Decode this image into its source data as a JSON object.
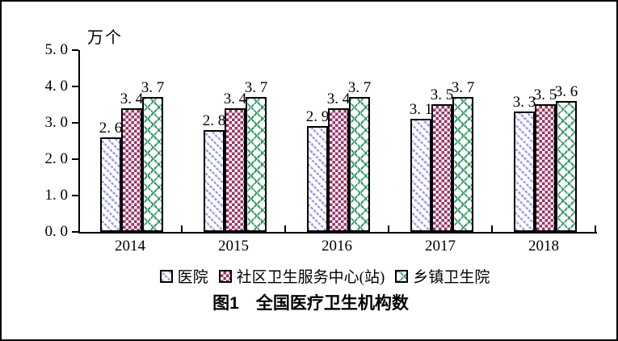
{
  "chart_data": {
    "type": "bar",
    "title": "图1　全国医疗卫生机构数",
    "unit_label": "万个",
    "categories": [
      "2014",
      "2015",
      "2016",
      "2017",
      "2018"
    ],
    "series": [
      {
        "name": "医院",
        "values": [
          2.6,
          2.8,
          2.9,
          3.1,
          3.3
        ],
        "labels": [
          "2. 6",
          "2. 8",
          "2. 9",
          "3. 1",
          "3. 3"
        ],
        "pattern": "dashed-backslash-diagonal",
        "color": "#9f9fe8"
      },
      {
        "name": "社区卫生服务中心(站)",
        "values": [
          3.4,
          3.4,
          3.4,
          3.5,
          3.5
        ],
        "labels": [
          "3. 4",
          "3. 4",
          "3. 4",
          "3. 5",
          "3. 5"
        ],
        "pattern": "checkerboard",
        "color": "#993366"
      },
      {
        "name": "乡镇卫生院",
        "values": [
          3.7,
          3.7,
          3.7,
          3.7,
          3.6
        ],
        "labels": [
          "3. 7",
          "3. 7",
          "3. 7",
          "3. 7",
          "3. 6"
        ],
        "pattern": "diamond-lattice",
        "color": "#339966"
      }
    ],
    "ylim": [
      0,
      5
    ],
    "ytick_step": 1,
    "ytick_labels": [
      "0. 0",
      "1. 0",
      "2. 0",
      "3. 0",
      "4. 0",
      "5. 0"
    ],
    "xlabel": "",
    "ylabel": "万个",
    "grid": false,
    "legend_position": "bottom",
    "bar_border_color": "#000000",
    "axis_color": "#000000"
  },
  "geometry_note": "y axis 0-5, 45px per unit"
}
